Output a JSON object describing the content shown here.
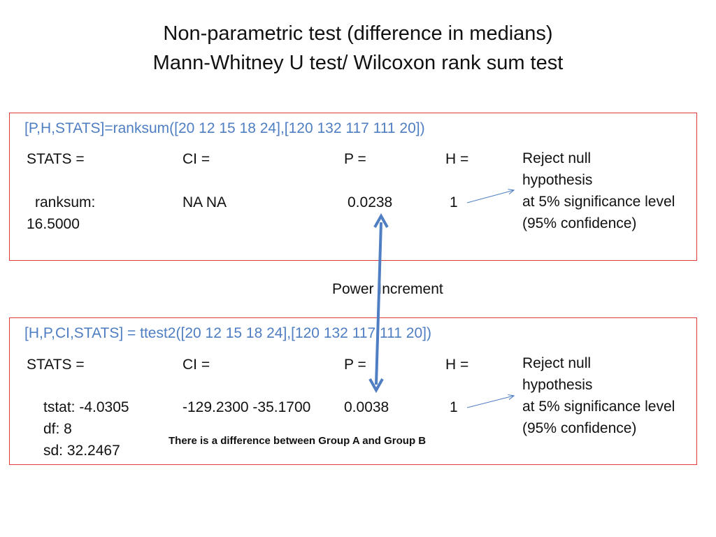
{
  "title": {
    "line1": "Non-parametric test (difference in medians)",
    "line2": "Mann-Whitney U test/ Wilcoxon rank sum test"
  },
  "box1": {
    "command": "[P,H,STATS]=ranksum([20 12 15 18 24],[120 132 117 111 20])",
    "stats_label": "STATS =",
    "ci_label": "CI =",
    "p_label": "P =",
    "h_label": "H =",
    "ranksum_label": "ranksum:",
    "ranksum_value": "16.5000",
    "ci_value": "NA  NA",
    "p_value": "0.0238",
    "h_value": "1",
    "note": [
      "Reject null",
      "hypothesis",
      "at 5% significance level",
      "(95% confidence)"
    ]
  },
  "middle_label": "Power Increment",
  "box2": {
    "command": "[H,P,CI,STATS] = ttest2([20 12 15 18 24],[120 132 117 111 20])",
    "stats_label": "STATS =",
    "ci_label": "CI =",
    "p_label": "P =",
    "h_label": "H =",
    "tstat": "tstat: -4.0305",
    "df": "df: 8",
    "sd": "sd: 32.2467",
    "ci_value": "-129.2300  -35.1700",
    "p_value": "0.0038",
    "h_value": "1",
    "note": [
      "Reject null",
      "hypothesis",
      "at 5% significance level",
      "(95% confidence)"
    ],
    "conclusion": "There is a difference between Group A and Group B"
  },
  "colors": {
    "box_border": "#e03c3c",
    "command_text": "#4f7ec2",
    "arrow": "#4f7ec2"
  }
}
